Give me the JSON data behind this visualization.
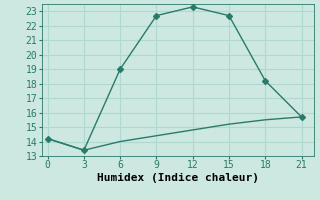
{
  "xlabel": "Humidex (Indice chaleur)",
  "ylabel": "",
  "background_color": "#cce8e0",
  "grid_color": "#b0d8d0",
  "line_color": "#2a7a6a",
  "line1_x": [
    0,
    3,
    6,
    9,
    12,
    15,
    18,
    21
  ],
  "line1_y": [
    14.2,
    13.4,
    19.0,
    22.7,
    23.3,
    22.7,
    18.2,
    15.7
  ],
  "line2_x": [
    0,
    3,
    6,
    9,
    12,
    15,
    18,
    21
  ],
  "line2_y": [
    14.2,
    13.4,
    14.0,
    14.4,
    14.8,
    15.2,
    15.5,
    15.7
  ],
  "xlim": [
    -0.5,
    22
  ],
  "ylim": [
    13,
    23.5
  ],
  "xticks": [
    0,
    3,
    6,
    9,
    12,
    15,
    18,
    21
  ],
  "yticks": [
    13,
    14,
    15,
    16,
    17,
    18,
    19,
    20,
    21,
    22,
    23
  ],
  "marker": "D",
  "marker_size": 3,
  "line_width": 1.0,
  "font_family": "monospace",
  "xlabel_fontsize": 8,
  "tick_fontsize": 7
}
